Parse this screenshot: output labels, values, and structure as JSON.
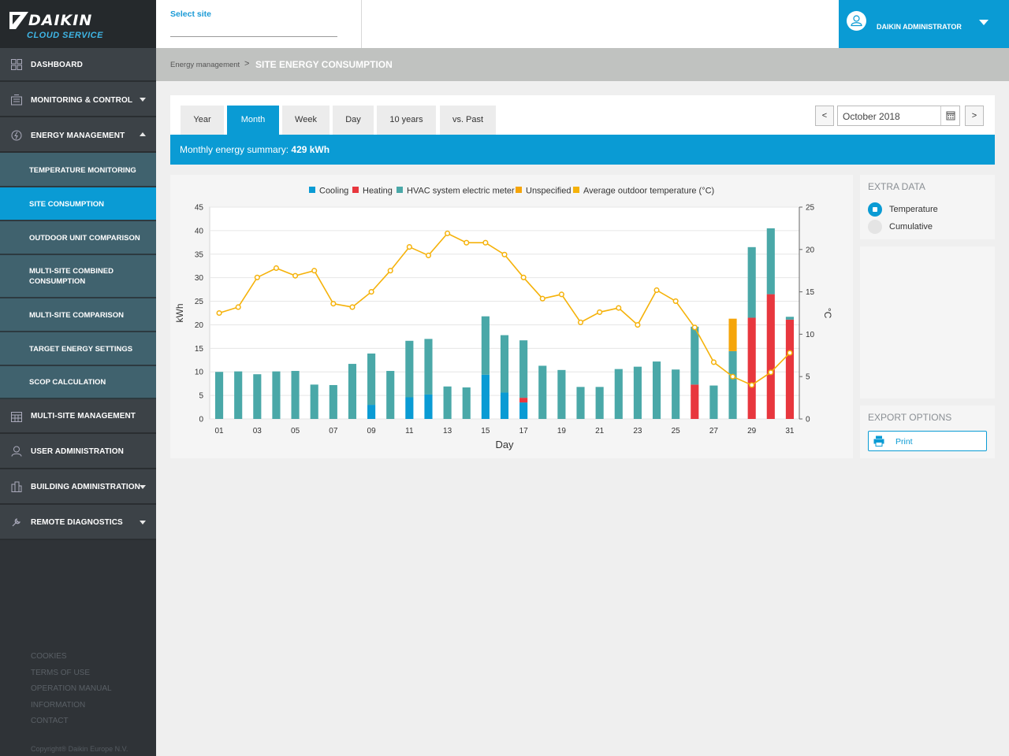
{
  "logo": {
    "brand": "DAIKIN",
    "sub": "CLOUD SERVICE"
  },
  "sidebar": {
    "items": [
      {
        "label": "DASHBOARD"
      },
      {
        "label": "MONITORING & CONTROL"
      },
      {
        "label": "ENERGY MANAGEMENT"
      },
      {
        "label": "MULTI-SITE MANAGEMENT"
      },
      {
        "label": "USER ADMINISTRATION"
      },
      {
        "label": "BUILDING ADMINISTRATION"
      },
      {
        "label": "REMOTE DIAGNOSTICS"
      }
    ],
    "sub_items": [
      {
        "label": "TEMPERATURE MONITORING"
      },
      {
        "label": "SITE CONSUMPTION"
      },
      {
        "label": "OUTDOOR UNIT COMPARISON"
      },
      {
        "label": "MULTI-SITE COMBINED CONSUMPTION"
      },
      {
        "label": "MULTI-SITE COMPARISON"
      },
      {
        "label": "TARGET ENERGY SETTINGS"
      },
      {
        "label": "SCOP CALCULATION"
      }
    ],
    "footer_links": [
      "COOKIES",
      "TERMS OF USE",
      "OPERATION MANUAL",
      "INFORMATION",
      "CONTACT"
    ],
    "copyright": "Copyright® Daikin Europe N.V."
  },
  "header": {
    "select_site": "Select site",
    "user_name": "DAIKIN ADMINISTRATOR"
  },
  "breadcrumb": {
    "parent": "Energy management",
    "separator": ">",
    "current": "SITE ENERGY CONSUMPTION"
  },
  "tabs": [
    {
      "label": "Year"
    },
    {
      "label": "Month"
    },
    {
      "label": "Week"
    },
    {
      "label": "Day"
    },
    {
      "label": "10 years"
    },
    {
      "label": "vs. Past"
    }
  ],
  "date_nav": {
    "prev": "<",
    "next": ">",
    "value": "October 2018"
  },
  "summary": {
    "prefix": "Monthly energy summary: ",
    "value": "429 kWh"
  },
  "extra_data": {
    "title": "EXTRA DATA",
    "options": [
      "Temperature",
      "Cumulative"
    ],
    "selected": "Temperature"
  },
  "export": {
    "title": "EXPORT OPTIONS",
    "print": "Print"
  },
  "colors": {
    "accent": "#0a9bd4",
    "cooling": "#0a9bd4",
    "heating": "#e8373e",
    "hvac": "#4aa8a8",
    "unspecified": "#f5a50a",
    "temperature": "#f5b20a"
  },
  "chart_data": {
    "type": "bar",
    "xlabel": "Day",
    "ylabel": "kWh",
    "y2label": "°C",
    "ylim": [
      0,
      45
    ],
    "y2lim": [
      0,
      25
    ],
    "yticks": [
      0,
      5,
      10,
      15,
      20,
      25,
      30,
      35,
      40,
      45
    ],
    "y2ticks": [
      0,
      5,
      10,
      15,
      20,
      25
    ],
    "x_tick_labels": [
      "01",
      "03",
      "05",
      "07",
      "09",
      "11",
      "13",
      "15",
      "17",
      "19",
      "21",
      "23",
      "25",
      "27",
      "29",
      "31"
    ],
    "legend": [
      "Cooling",
      "Heating",
      "HVAC system electric meter",
      "Unspecified",
      "Average outdoor temperature (°C)"
    ],
    "legend_position": "top-center",
    "days": [
      1,
      2,
      3,
      4,
      5,
      6,
      7,
      8,
      9,
      10,
      11,
      12,
      13,
      14,
      15,
      16,
      17,
      18,
      19,
      20,
      21,
      22,
      23,
      24,
      25,
      26,
      27,
      28,
      29,
      30,
      31
    ],
    "series": [
      {
        "name": "Cooling",
        "values": [
          0,
          0,
          0,
          0,
          0,
          0,
          0,
          0,
          3,
          0,
          4.6,
          5.2,
          0,
          0,
          9.4,
          5.6,
          3.5,
          0,
          0,
          0,
          0,
          0,
          0,
          0,
          0,
          0,
          0,
          0,
          0,
          0,
          0
        ]
      },
      {
        "name": "Heating",
        "values": [
          0,
          0,
          0,
          0,
          0,
          0,
          0,
          0,
          0,
          0,
          0,
          0,
          0,
          0,
          0,
          0,
          1,
          0,
          0,
          0,
          0,
          0,
          0,
          0,
          0,
          7.3,
          0,
          0,
          21.5,
          26.5,
          21.1
        ]
      },
      {
        "name": "HVAC system electric meter",
        "values": [
          10,
          10.1,
          9.5,
          10.1,
          10.2,
          7.3,
          7.2,
          11.7,
          10.9,
          10.2,
          12,
          11.8,
          6.9,
          6.7,
          12.4,
          12.2,
          12.2,
          11.3,
          10.4,
          6.8,
          6.8,
          10.6,
          11.1,
          12.2,
          10.5,
          12.3,
          7.1,
          14.4,
          15,
          14,
          0.6
        ]
      },
      {
        "name": "Unspecified",
        "values": [
          0,
          0,
          0,
          0,
          0,
          0,
          0,
          0,
          0,
          0,
          0,
          0,
          0,
          0,
          0,
          0,
          0,
          0,
          0,
          0,
          0,
          0,
          0,
          0,
          0,
          0,
          0,
          6.9,
          0,
          0,
          0
        ]
      },
      {
        "name": "Average outdoor temperature (°C)",
        "axis": "right",
        "type": "line",
        "values": [
          12.5,
          13.2,
          16.7,
          17.8,
          16.9,
          17.5,
          13.6,
          13.2,
          15,
          17.5,
          20.3,
          19.3,
          21.9,
          20.8,
          20.8,
          19.4,
          16.7,
          14.2,
          14.7,
          11.4,
          12.6,
          13.1,
          11.1,
          15.2,
          13.9,
          10.8,
          6.7,
          5,
          4,
          5.5,
          7.8
        ]
      }
    ]
  }
}
